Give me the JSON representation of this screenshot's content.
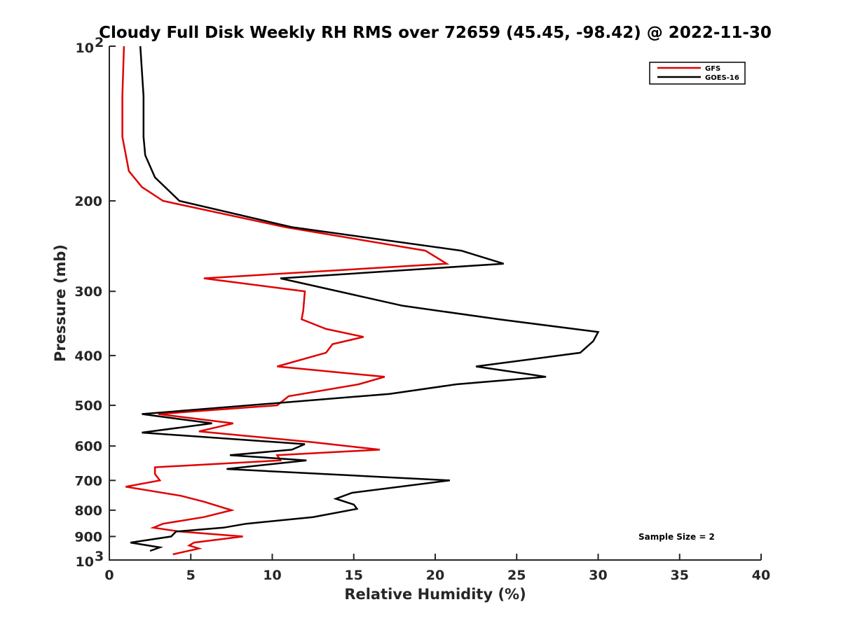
{
  "chart_data": {
    "type": "line",
    "title": "Cloudy Full Disk Weekly RH RMS over 72659 (45.45, -98.42) @ 2022-11-30",
    "xlabel": "Relative Humidity (%)",
    "ylabel": "Pressure (mb)",
    "xlim": [
      0,
      40
    ],
    "ylim": [
      100,
      1000
    ],
    "yscale": "log",
    "y_reversed": true,
    "grid": false,
    "legend_position": "top-right",
    "note": "Sample Size = 2",
    "x_ticks": [
      "0",
      "5",
      "10",
      "15",
      "20",
      "25",
      "30",
      "35",
      "40"
    ],
    "y_ticks": [
      {
        "value": 100,
        "base": "10",
        "exp": "2"
      },
      {
        "value": 200,
        "label": "200"
      },
      {
        "value": 300,
        "label": "300"
      },
      {
        "value": 400,
        "label": "400"
      },
      {
        "value": 500,
        "label": "500"
      },
      {
        "value": 600,
        "label": "600"
      },
      {
        "value": 700,
        "label": "700"
      },
      {
        "value": 800,
        "label": "800"
      },
      {
        "value": 900,
        "label": "900"
      },
      {
        "value": 1000,
        "base": "10",
        "exp": "3"
      }
    ],
    "series": [
      {
        "name": "GFS",
        "color": "#e00000",
        "points": [
          [
            0.9,
            100
          ],
          [
            0.8,
            125
          ],
          [
            0.8,
            150
          ],
          [
            1.2,
            175
          ],
          [
            2.0,
            188
          ],
          [
            3.3,
            200
          ],
          [
            10.8,
            225
          ],
          [
            19.4,
            250
          ],
          [
            20.7,
            265
          ],
          [
            5.8,
            283
          ],
          [
            12.0,
            300
          ],
          [
            11.9,
            327
          ],
          [
            11.8,
            340
          ],
          [
            13.3,
            355
          ],
          [
            15.6,
            368
          ],
          [
            13.7,
            380
          ],
          [
            13.3,
            395
          ],
          [
            10.3,
            420
          ],
          [
            16.9,
            440
          ],
          [
            15.3,
            455
          ],
          [
            11.0,
            480
          ],
          [
            10.3,
            500
          ],
          [
            3.0,
            520
          ],
          [
            7.6,
            542
          ],
          [
            5.5,
            562
          ],
          [
            12.5,
            590
          ],
          [
            16.6,
            610
          ],
          [
            10.3,
            625
          ],
          [
            10.5,
            640
          ],
          [
            2.8,
            660
          ],
          [
            2.8,
            680
          ],
          [
            3.1,
            700
          ],
          [
            1.0,
            720
          ],
          [
            4.4,
            750
          ],
          [
            5.8,
            770
          ],
          [
            7.5,
            800
          ],
          [
            5.8,
            825
          ],
          [
            3.3,
            850
          ],
          [
            2.7,
            865
          ],
          [
            4.3,
            880
          ],
          [
            8.2,
            900
          ],
          [
            5.2,
            925
          ],
          [
            4.9,
            937
          ],
          [
            5.5,
            950
          ],
          [
            3.9,
            975
          ]
        ]
      },
      {
        "name": "GOES-16",
        "color": "#000000",
        "points": [
          [
            1.9,
            100
          ],
          [
            2.1,
            125
          ],
          [
            2.1,
            150
          ],
          [
            2.2,
            163
          ],
          [
            2.8,
            180
          ],
          [
            4.3,
            200
          ],
          [
            11.2,
            225
          ],
          [
            21.6,
            250
          ],
          [
            24.2,
            265
          ],
          [
            10.5,
            283
          ],
          [
            18.0,
            320
          ],
          [
            23.9,
            340
          ],
          [
            30.0,
            360
          ],
          [
            29.7,
            375
          ],
          [
            28.9,
            395
          ],
          [
            22.5,
            420
          ],
          [
            26.8,
            440
          ],
          [
            21.3,
            455
          ],
          [
            17.2,
            475
          ],
          [
            2.0,
            520
          ],
          [
            6.3,
            542
          ],
          [
            2.0,
            565
          ],
          [
            12.0,
            595
          ],
          [
            11.2,
            610
          ],
          [
            7.4,
            625
          ],
          [
            12.1,
            640
          ],
          [
            7.2,
            665
          ],
          [
            17.0,
            690
          ],
          [
            20.9,
            700
          ],
          [
            14.9,
            740
          ],
          [
            13.9,
            760
          ],
          [
            15.0,
            780
          ],
          [
            15.2,
            795
          ],
          [
            12.5,
            825
          ],
          [
            8.4,
            850
          ],
          [
            7.0,
            865
          ],
          [
            4.1,
            880
          ],
          [
            3.8,
            900
          ],
          [
            1.3,
            925
          ],
          [
            3.1,
            945
          ],
          [
            2.5,
            960
          ]
        ]
      }
    ]
  }
}
